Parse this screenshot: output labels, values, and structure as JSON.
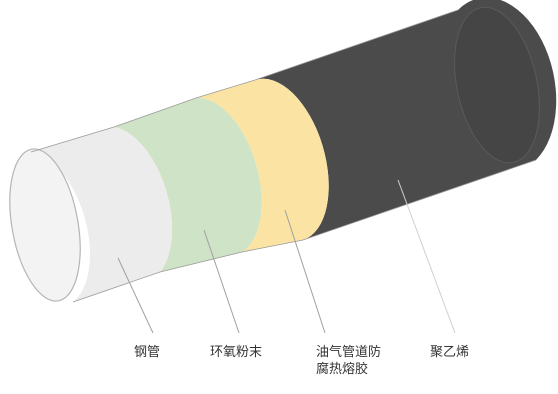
{
  "layers": [
    {
      "label": "钢管",
      "color": "#ececec"
    },
    {
      "label": "环氧粉末",
      "color": "#cfe4c6"
    },
    {
      "label": "油气管道防腐热熔胶",
      "label_line1": "油气管道防",
      "label_line2": "腐热熔胶",
      "color": "#fbe4a3"
    },
    {
      "label": "聚乙烯",
      "color": "#4b4b4b"
    }
  ],
  "colors": {
    "outline": "#9a9a9a",
    "leader": "#a0a0a0",
    "text": "#333333"
  }
}
